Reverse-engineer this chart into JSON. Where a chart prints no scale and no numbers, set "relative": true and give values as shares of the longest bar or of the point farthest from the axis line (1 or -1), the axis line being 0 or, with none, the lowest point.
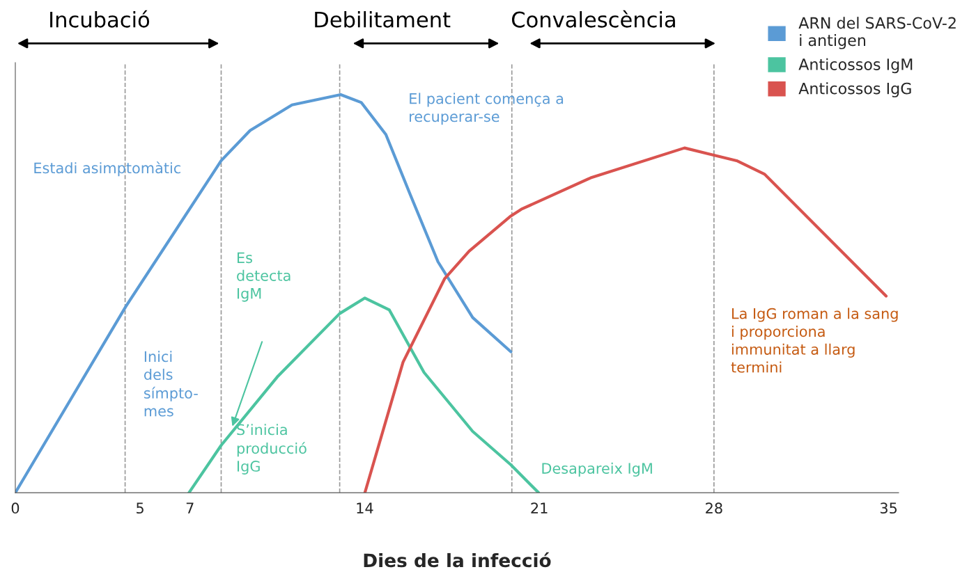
{
  "chart_data": {
    "type": "line",
    "relative": true,
    "xlabel": "Dies de la infecció",
    "xlim": [
      0,
      35.4
    ],
    "xticks": [
      0,
      5,
      7,
      14,
      21,
      28,
      35
    ],
    "series": [
      {
        "name": "ARN del SARS-CoV-2\ni antigen",
        "color": "#5b9bd5",
        "x": [
          0,
          4.43,
          7.74,
          8.25,
          9.41,
          11.09,
          13.04,
          13.87,
          14.85,
          15.82,
          16.94,
          18.33,
          19.86
        ],
        "values": [
          0,
          0.468,
          0.785,
          0.834,
          0.91,
          0.974,
          1.0,
          0.98,
          0.9,
          0.75,
          0.58,
          0.44,
          0.354
        ]
      },
      {
        "name": "Anticossos IgM",
        "color": "#4cc4a0",
        "x": [
          6.96,
          8.25,
          10.53,
          13.0,
          14.01,
          14.99,
          16.38,
          18.33,
          19.86,
          20.97
        ],
        "values": [
          0,
          0.119,
          0.293,
          0.45,
          0.489,
          0.459,
          0.302,
          0.154,
          0.07,
          0
        ]
      },
      {
        "name": "Anticossos IgG",
        "color": "#d9534f",
        "x": [
          14.01,
          15.54,
          17.21,
          18.19,
          19.86,
          20.28,
          23.06,
          26.82,
          28.91,
          30.03,
          34.9
        ],
        "values": [
          0,
          0.328,
          0.538,
          0.607,
          0.695,
          0.712,
          0.791,
          0.866,
          0.834,
          0.8,
          0.494
        ]
      }
    ],
    "ref_lines": [
      {
        "axis": "x",
        "value": 4.4,
        "color": "#999999",
        "line_style": "dashed"
      },
      {
        "axis": "x",
        "value": 8.25,
        "color": "#999999",
        "line_style": "dashed"
      },
      {
        "axis": "x",
        "value": 13.0,
        "color": "#999999",
        "line_style": "dashed"
      },
      {
        "axis": "x",
        "value": 19.9,
        "color": "#999999",
        "line_style": "dashed"
      },
      {
        "axis": "x",
        "value": 28.0,
        "color": "#999999",
        "line_style": "dashed"
      }
    ],
    "annotations": [
      "Incubació",
      "Debilitament",
      "Convalescència",
      "Estadi asimptomàtic",
      "Inici\ndels\nsímpto-\nmes",
      "El pacient comença a\nrecuperar-se",
      "Es\ndetecta\nIgM",
      "S’inicia\nproducció\nIgG",
      "Desapareix IgM",
      "La IgG roman a la sang\ni proporciona\nimmunitat a llarg\ntermini"
    ],
    "legend": "top right",
    "grid": false,
    "marker": "none",
    "line_style": "solid"
  }
}
